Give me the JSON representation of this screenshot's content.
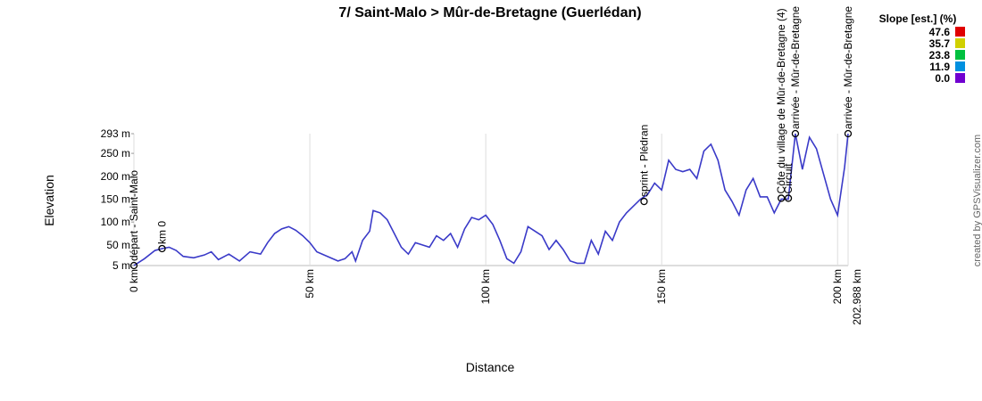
{
  "chart_data": {
    "type": "line",
    "title": "7/ Saint-Malo > Mûr-de-Bretagne (Guerlédan)",
    "xlabel": "Distance",
    "ylabel": "Elevation",
    "credit": "created by GPSVisualizer.com",
    "x": [
      0,
      3,
      6,
      8,
      10,
      12,
      14,
      17,
      20,
      22,
      24,
      27,
      30,
      33,
      36,
      38,
      40,
      42,
      44,
      46,
      48,
      50,
      52,
      55,
      58,
      60,
      62,
      63,
      65,
      67,
      68,
      70,
      72,
      74,
      76,
      78,
      80,
      82,
      84,
      86,
      88,
      90,
      92,
      94,
      96,
      98,
      100,
      102,
      104,
      106,
      108,
      110,
      112,
      114,
      116,
      118,
      120,
      122,
      124,
      126,
      128,
      130,
      132,
      134,
      136,
      138,
      140,
      142,
      144,
      146,
      148,
      150,
      152,
      154,
      156,
      158,
      160,
      162,
      164,
      166,
      168,
      170,
      172,
      174,
      176,
      178,
      180,
      182,
      184,
      186,
      188,
      190,
      192,
      194,
      196,
      198,
      200,
      202,
      202.988
    ],
    "series": [
      {
        "name": "Elevation",
        "color": "#3a3ac8",
        "values": [
          5,
          20,
          38,
          42,
          45,
          38,
          25,
          22,
          28,
          35,
          18,
          30,
          15,
          35,
          30,
          55,
          75,
          85,
          90,
          82,
          70,
          55,
          35,
          25,
          15,
          20,
          35,
          15,
          60,
          80,
          125,
          120,
          105,
          75,
          45,
          30,
          55,
          50,
          45,
          70,
          60,
          75,
          45,
          85,
          110,
          105,
          115,
          95,
          60,
          20,
          10,
          35,
          90,
          80,
          70,
          40,
          60,
          40,
          15,
          10,
          10,
          60,
          30,
          80,
          60,
          100,
          120,
          135,
          150,
          160,
          185,
          170,
          235,
          215,
          210,
          215,
          195,
          255,
          270,
          235,
          170,
          145,
          115,
          170,
          195,
          155,
          155,
          120,
          150,
          150,
          293,
          215,
          285,
          260,
          205,
          150,
          115,
          220,
          293
        ]
      }
    ],
    "xlim": [
      0,
      202.988
    ],
    "ylim": [
      5,
      293
    ],
    "xticks": [
      {
        "value": 0,
        "label": "0 km"
      },
      {
        "value": 50,
        "label": "50 km"
      },
      {
        "value": 100,
        "label": "100 km"
      },
      {
        "value": 150,
        "label": "150 km"
      },
      {
        "value": 200,
        "label": "200 km"
      },
      {
        "value": 202.988,
        "label": "202.988 km"
      }
    ],
    "yticks": [
      {
        "value": 5,
        "label": "5 m"
      },
      {
        "value": 50,
        "label": "50 m"
      },
      {
        "value": 100,
        "label": "100 m"
      },
      {
        "value": 150,
        "label": "150 m"
      },
      {
        "value": 200,
        "label": "200 m"
      },
      {
        "value": 250,
        "label": "250 m"
      },
      {
        "value": 293,
        "label": "293 m"
      }
    ],
    "grid": true,
    "waypoints": [
      {
        "label": "départ - Saint-Malo",
        "x": 0,
        "y": 5
      },
      {
        "label": "km 0",
        "x": 8,
        "y": 42
      },
      {
        "label": "sprint - Plédran",
        "x": 145,
        "y": 145
      },
      {
        "label": "Côte du village de Mûr-de-Bretagne (4)",
        "x": 184,
        "y": 152
      },
      {
        "label": "Circuit",
        "x": 186,
        "y": 152
      },
      {
        "label": "arrivée - Mûr-de-Bretagne",
        "x": 188,
        "y": 293
      },
      {
        "label": "arrivée - Mûr-de-Bretagne",
        "x": 202.988,
        "y": 293
      }
    ],
    "legend": {
      "title": "Slope [est.] (%)",
      "items": [
        {
          "label": "47.6",
          "color": "#e00000"
        },
        {
          "label": "35.7",
          "color": "#d0d000"
        },
        {
          "label": "23.8",
          "color": "#00c040"
        },
        {
          "label": "11.9",
          "color": "#0090e0"
        },
        {
          "label": "0.0",
          "color": "#7000d0"
        }
      ]
    }
  }
}
